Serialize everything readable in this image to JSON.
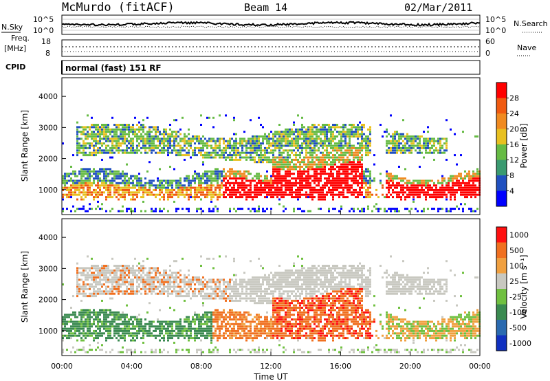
{
  "header": {
    "station": "McMurdo (fitACF)",
    "beam": "Beam 14",
    "date": "02/Mar/2011"
  },
  "noise_panel": {
    "left_label": "N.Sky",
    "right_label": "N.Search",
    "left_ticks": [
      "10^5",
      "10^0"
    ],
    "right_ticks": [
      "10^5",
      "10^0"
    ]
  },
  "freq_panel": {
    "left_label_1": "Freq.",
    "left_label_2": "[MHz]",
    "right_label": "Nave",
    "left_ticks": [
      "18",
      "8"
    ],
    "right_ticks": [
      "60",
      "0"
    ]
  },
  "cpid": {
    "label": "CPID",
    "value": "normal (fast) 151 RF"
  },
  "colors": {
    "power_scale": [
      "#0000ff",
      "#2050c0",
      "#3a9a70",
      "#66bb44",
      "#e8c020",
      "#f08a20",
      "#f05a10",
      "#ff0000"
    ],
    "velocity_scale": [
      "#1030c0",
      "#2a6ab0",
      "#3a8a50",
      "#70c040",
      "#c8c8c0",
      "#f0a040",
      "#f07020",
      "#ff1010"
    ]
  },
  "chart_data": [
    {
      "type": "heatmap",
      "ylabel": "Slant Range [km]",
      "y_ticks": [
        "4000",
        "3000",
        "2000",
        "1000"
      ],
      "ylim": [
        200,
        4600
      ],
      "colorbar_label": "Power [dB]",
      "colorbar_ticks": [
        "28",
        "24",
        "20",
        "16",
        "12",
        "8",
        "4"
      ],
      "colorbar_range": [
        0,
        32
      ]
    },
    {
      "type": "heatmap",
      "ylabel": "Slant Range [km]",
      "y_ticks": [
        "4000",
        "3000",
        "2000",
        "1000"
      ],
      "ylim": [
        200,
        4600
      ],
      "colorbar_label": "Velocity [m s⁻¹]",
      "colorbar_ticks": [
        "1000",
        "500",
        "100",
        "25",
        "-25",
        "-100",
        "-500",
        "-1000"
      ]
    }
  ],
  "x_axis": {
    "label": "Time UT",
    "ticks": [
      "00:00",
      "04:00",
      "08:00",
      "12:00",
      "16:00",
      "20:00",
      "00:00"
    ]
  }
}
